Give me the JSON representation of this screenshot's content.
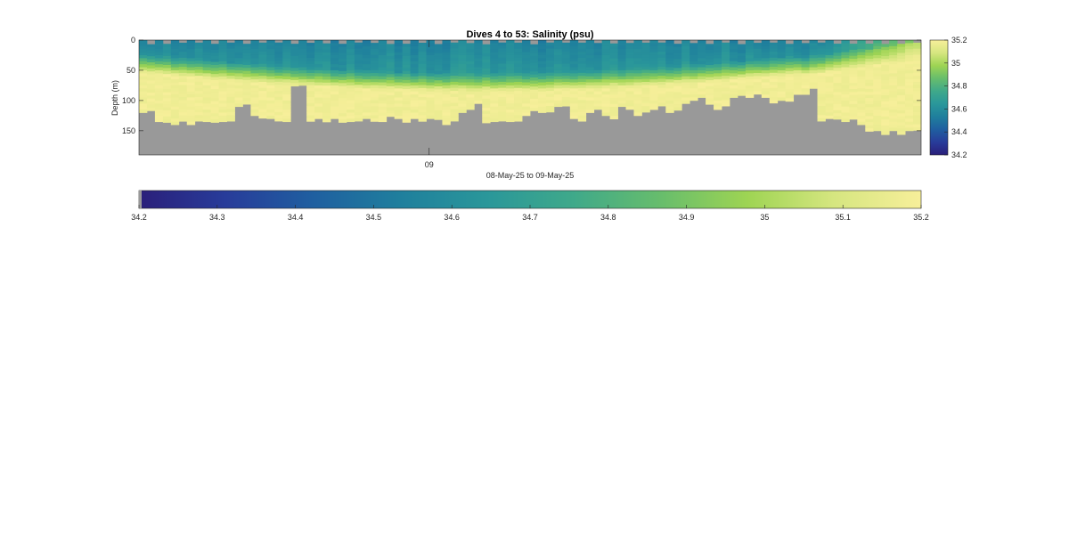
{
  "chart_data": {
    "type": "heatmap",
    "title": "Dives 4 to 53: Salinity (psu)",
    "xlabel": "08-May-25 to 09-May-25",
    "ylabel": "Depth (m)",
    "x_tick_labels": [
      "09"
    ],
    "y_tick_labels": [
      "0",
      "50",
      "100",
      "150"
    ],
    "y_ticks": [
      0,
      50,
      100,
      150
    ],
    "ylim": [
      0,
      190
    ],
    "dives": [
      4,
      53
    ],
    "n_profiles": 98,
    "color_range": [
      34.2,
      35.2
    ],
    "colorscale": [
      "#2a1f7a",
      "#283c9a",
      "#1f5fa0",
      "#1f7f9d",
      "#2a979a",
      "#3fa98a",
      "#67bd6c",
      "#9ed453",
      "#d6e680",
      "#f7ef9a"
    ],
    "no_data_color": "#999999",
    "side_colorbar_ticks": [
      "34.2",
      "34.4",
      "34.6",
      "34.8",
      "35",
      "35.2"
    ],
    "side_colorbar_values": [
      34.2,
      34.4,
      34.6,
      34.8,
      35.0,
      35.2
    ],
    "bottom_colorbar_ticks": [
      "34.2",
      "34.3",
      "34.4",
      "34.5",
      "34.6",
      "34.7",
      "34.8",
      "34.9",
      "35",
      "35.1",
      "35.2"
    ],
    "bottom_colorbar_values": [
      34.2,
      34.3,
      34.4,
      34.5,
      34.6,
      34.7,
      34.8,
      34.9,
      35.0,
      35.1,
      35.2
    ],
    "profile_max_depth_m": [
      120,
      112,
      132,
      135,
      138,
      134,
      136,
      133,
      135,
      136,
      132,
      130,
      108,
      102,
      125,
      128,
      130,
      132,
      135,
      75,
      74,
      130,
      128,
      132,
      130,
      133,
      132,
      134,
      128,
      132,
      134,
      126,
      128,
      132,
      130,
      132,
      130,
      128,
      136,
      132,
      118,
      110,
      102,
      132,
      134,
      130,
      132,
      130,
      122,
      116,
      120,
      118,
      110,
      108,
      128,
      130,
      116,
      110,
      124,
      130,
      110,
      112,
      122,
      118,
      114,
      108,
      116,
      112,
      102,
      96,
      92,
      106,
      112,
      108,
      92,
      88,
      92,
      86,
      92,
      104,
      100,
      98,
      90,
      88,
      80,
      132,
      128,
      130,
      132,
      128,
      136,
      150,
      148,
      154,
      150,
      152,
      148,
      146
    ]
  }
}
